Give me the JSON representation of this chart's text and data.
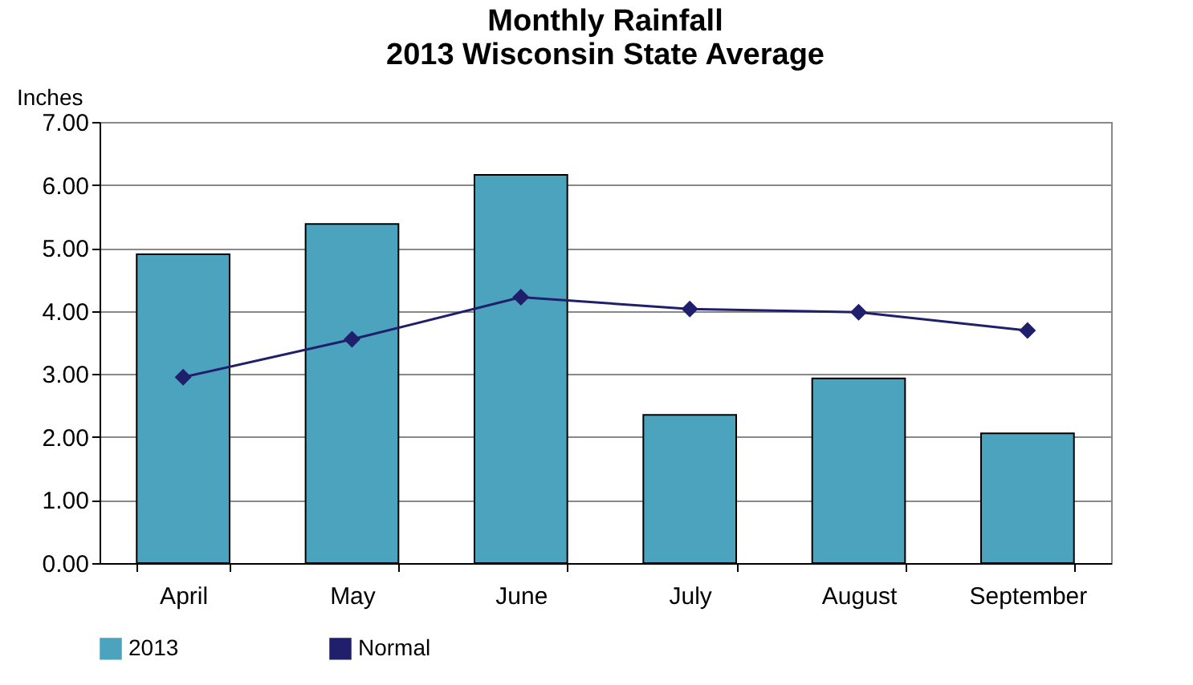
{
  "chart_data": {
    "type": "bar",
    "title": [
      "Monthly Rainfall",
      "2013 Wisconsin  State Average"
    ],
    "ylabel": "Inches",
    "categories": [
      "April",
      "May",
      "June",
      "July",
      "August",
      "September"
    ],
    "series": [
      {
        "name": "2013",
        "color": "#4ba3bd",
        "values": [
          4.9,
          5.38,
          6.16,
          2.35,
          2.93,
          2.06
        ]
      },
      {
        "name": "Normal",
        "type": "line",
        "color": "#1f1f6b",
        "values": [
          2.95,
          3.55,
          4.22,
          4.03,
          3.98,
          3.69
        ]
      }
    ],
    "ylim": [
      0,
      7
    ],
    "yticks": [
      {
        "value": 0,
        "label": "0.00"
      },
      {
        "value": 1,
        "label": "1.00"
      },
      {
        "value": 2,
        "label": "2.00"
      },
      {
        "value": 3,
        "label": "3.00"
      },
      {
        "value": 4,
        "label": "4.00"
      },
      {
        "value": 5,
        "label": "5.00"
      },
      {
        "value": 6,
        "label": "6.00"
      },
      {
        "value": 7,
        "label": "7.00"
      }
    ],
    "grid": "y",
    "legend": "bottom",
    "marker": "diamond",
    "line_style": "solid"
  }
}
